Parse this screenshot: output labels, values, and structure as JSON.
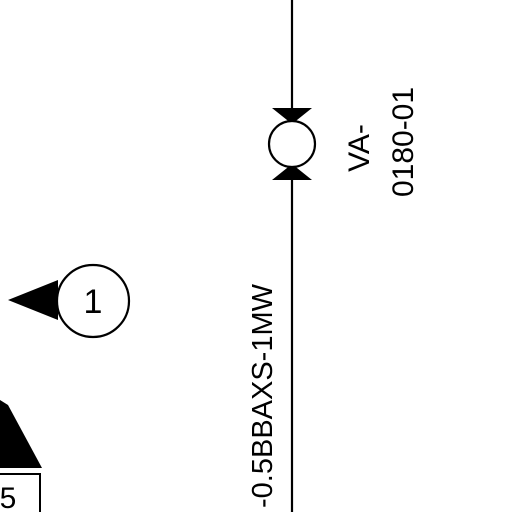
{
  "diagram": {
    "line_label": "-0.5BBAXS-1MW",
    "valve": {
      "tag_line1": "VA-",
      "tag_line2": "0180-01"
    },
    "callout": {
      "number": "1"
    },
    "partial_label": "5"
  },
  "colors": {
    "ink": "#000000",
    "paper": "#ffffff"
  }
}
